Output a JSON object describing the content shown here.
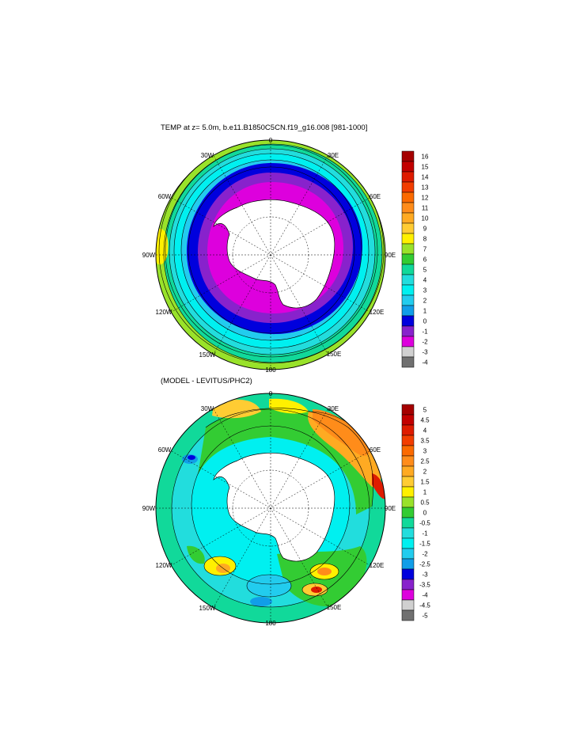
{
  "panels": [
    {
      "title": "TEMP at z=   5.0m, b.e11.B1850C5CN.f19_g16.008 [981-1000]",
      "lon_labels": [
        "0",
        "30E",
        "60E",
        "90E",
        "120E",
        "150E",
        "180",
        "150W",
        "120W",
        "90W",
        "60W",
        "30W"
      ],
      "colorbar": {
        "labels": [
          "16",
          "15",
          "14",
          "13",
          "12",
          "11",
          "10",
          "9",
          "8",
          "7",
          "6",
          "5",
          "4",
          "3",
          "2",
          "1",
          "0",
          "-1",
          "-2",
          "-3",
          "-4"
        ],
        "colors": [
          "#a50000",
          "#c20000",
          "#de1b00",
          "#f23d00",
          "#fb6a00",
          "#ff8c1a",
          "#ffaa22",
          "#ffcc33",
          "#fff000",
          "#99e22a",
          "#33cc33",
          "#11d99a",
          "#22dddd",
          "#00f0f0",
          "#22ccee",
          "#119ee8",
          "#0000dd",
          "#8822cc",
          "#dd00dd",
          "#d0d0d0",
          "#707070"
        ]
      }
    },
    {
      "title": "(MODEL - LEVITUS/PHC2)",
      "lon_labels": [
        "0",
        "30E",
        "60E",
        "90E",
        "120E",
        "150E",
        "180",
        "150W",
        "120W",
        "90W",
        "60W",
        "30W"
      ],
      "colorbar": {
        "labels": [
          "5",
          "4.5",
          "4",
          "3.5",
          "3",
          "2.5",
          "2",
          "1.5",
          "1",
          "0.5",
          "0",
          "-0.5",
          "-1",
          "-1.5",
          "-2",
          "-2.5",
          "-3",
          "-3.5",
          "-4",
          "-4.5",
          "-5"
        ],
        "colors": [
          "#a50000",
          "#c20000",
          "#de1b00",
          "#f23d00",
          "#fb6a00",
          "#ff8c1a",
          "#ffaa22",
          "#ffcc33",
          "#fff000",
          "#99e22a",
          "#33cc33",
          "#11d99a",
          "#22dddd",
          "#00f0f0",
          "#22ccee",
          "#119ee8",
          "#0000dd",
          "#8822cc",
          "#dd00dd",
          "#d0d0d0",
          "#707070"
        ]
      }
    }
  ]
}
